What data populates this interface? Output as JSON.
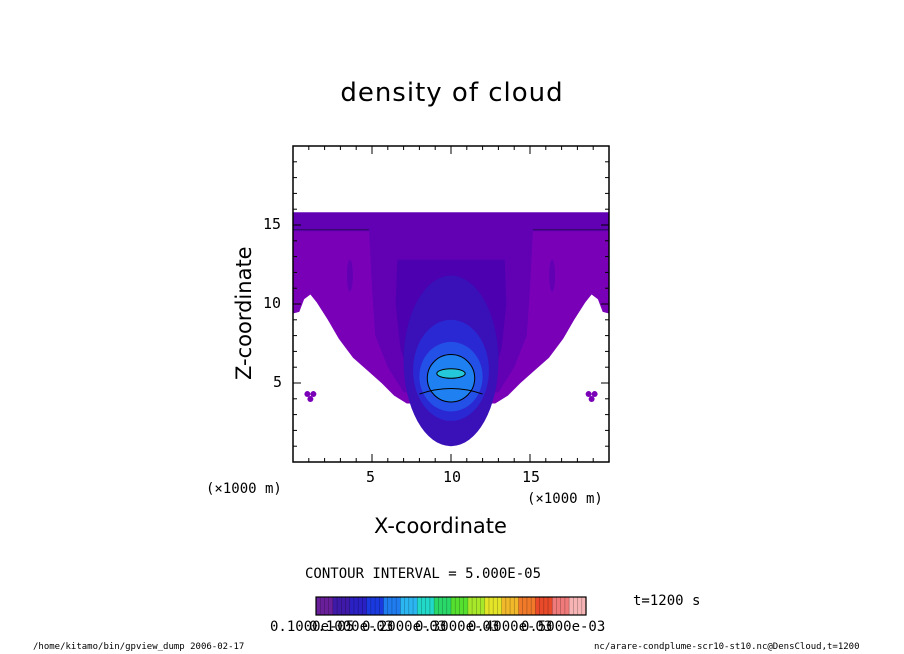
{
  "chart_data": {
    "type": "heatmap",
    "title": "density of cloud",
    "xlabel": "X-coordinate",
    "ylabel": "Z-coordinate",
    "x_unit": "(×1000 m)",
    "y_unit": "(×1000 m)",
    "xlim": [
      0,
      20
    ],
    "ylim": [
      0,
      20
    ],
    "xticks": [
      "5",
      "10",
      "15"
    ],
    "yticks": [
      "5",
      "10",
      "15"
    ],
    "contour_interval_text": "CONTOUR INTERVAL = 5.000E-05",
    "time_label": "t=1200 s",
    "colorbar_labels": [
      "0.1000e-05",
      "0.1000e-03",
      "0.2000e-03",
      "0.3000e-03",
      "0.4000e-03",
      "0.5000e-03"
    ],
    "colorbar_colors": [
      "#6a1f9a",
      "#3f1aa8",
      "#2a20c4",
      "#1a3ae0",
      "#1f7df0",
      "#2bb6f2",
      "#22d8c8",
      "#2ad86a",
      "#55e030",
      "#a8e82a",
      "#e4e428",
      "#f0b82a",
      "#f07a2a",
      "#e84a2a",
      "#f07a7a",
      "#f6b4b4"
    ],
    "region_colors": {
      "outer": "#7a00b8",
      "band_1": "#6200b4",
      "band_2": "#4c00b0",
      "band_3": "#3a10b8",
      "band_4": "#2a28d2",
      "band_5": "#2350e6",
      "core": "#1f80f2",
      "peak": "#25c8d8"
    },
    "footer_left": "/home/kitamo/bin/gpview_dump  2006-02-17",
    "footer_right": "nc/arare-condplume-scr10-st10.nc@DensCloud,t=1200"
  }
}
